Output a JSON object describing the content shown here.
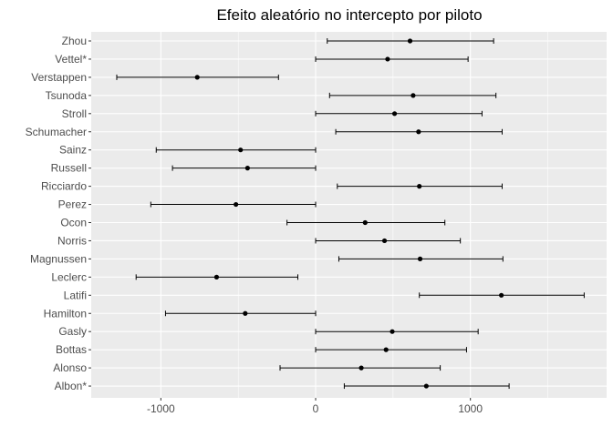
{
  "chart_data": {
    "type": "forest",
    "title": "Efeito aleatório no intercepto por piloto",
    "xlabel": "",
    "ylabel": "",
    "xlim": [
      -1450,
      1880
    ],
    "x_ticks": [
      -1000,
      0,
      1000
    ],
    "x_tick_labels": [
      "-1000",
      "0",
      "1000"
    ],
    "grid": true,
    "panel_background": "#ebebeb",
    "grid_color": "#ffffff",
    "point_color": "#000000",
    "categories": [
      "Zhou",
      "Vettel*",
      "Verstappen",
      "Tsunoda",
      "Stroll",
      "Schumacher",
      "Sainz",
      "Russell",
      "Ricciardo",
      "Perez",
      "Ocon",
      "Norris",
      "Magnussen",
      "Leclerc",
      "Latifi",
      "Hamilton",
      "Gasly",
      "Bottas",
      "Alonso",
      "Albon*"
    ],
    "estimates": [
      610,
      465,
      -765,
      630,
      510,
      665,
      -485,
      -440,
      670,
      -515,
      320,
      445,
      675,
      -640,
      1200,
      -455,
      495,
      455,
      295,
      715
    ],
    "lower": [
      75,
      0,
      -1285,
      90,
      0,
      130,
      -1030,
      -925,
      140,
      -1065,
      -185,
      0,
      150,
      -1160,
      670,
      -970,
      0,
      0,
      -230,
      185
    ],
    "upper": [
      1150,
      985,
      -240,
      1165,
      1075,
      1205,
      0,
      0,
      1205,
      0,
      835,
      935,
      1210,
      -115,
      1735,
      0,
      1050,
      975,
      805,
      1250
    ]
  }
}
